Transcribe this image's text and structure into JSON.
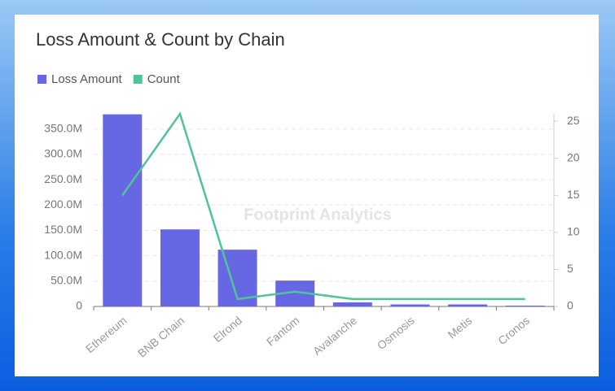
{
  "chart_data": {
    "type": "bar-line",
    "title": "Loss Amount & Count by Chain",
    "watermark": "Footprint Analytics",
    "categories": [
      "Ethereum",
      "BNB Chain",
      "Elrond",
      "Fantom",
      "Avalanche",
      "Osmosis",
      "Metis",
      "Cronos"
    ],
    "series": [
      {
        "name": "Loss Amount",
        "color": "#6767e3",
        "type": "bar",
        "values": [
          379000000,
          152000000,
          112000000,
          51000000,
          8000000,
          4000000,
          4000000,
          1600000
        ]
      },
      {
        "name": "Count",
        "color": "#4fc49a",
        "type": "line",
        "axis": "y2",
        "values": [
          15,
          26,
          1,
          2,
          1,
          1,
          1,
          1
        ]
      }
    ],
    "ylim": [
      0,
      380000000
    ],
    "yticks": [
      0,
      {
        "value": 50000000,
        "label": "50.0M"
      },
      {
        "value": 100000000,
        "label": "100.0M"
      },
      {
        "value": 150000000,
        "label": "150.0M"
      },
      {
        "value": 200000000,
        "label": "200.0M"
      },
      {
        "value": 250000000,
        "label": "250.0M"
      },
      {
        "value": 300000000,
        "label": "300.0M"
      },
      {
        "value": 350000000,
        "label": "350.0M"
      }
    ],
    "y2lim": [
      0,
      26
    ],
    "y2ticks": [
      0,
      5,
      10,
      15,
      20,
      25
    ],
    "grid": true,
    "legend": "top-left"
  }
}
